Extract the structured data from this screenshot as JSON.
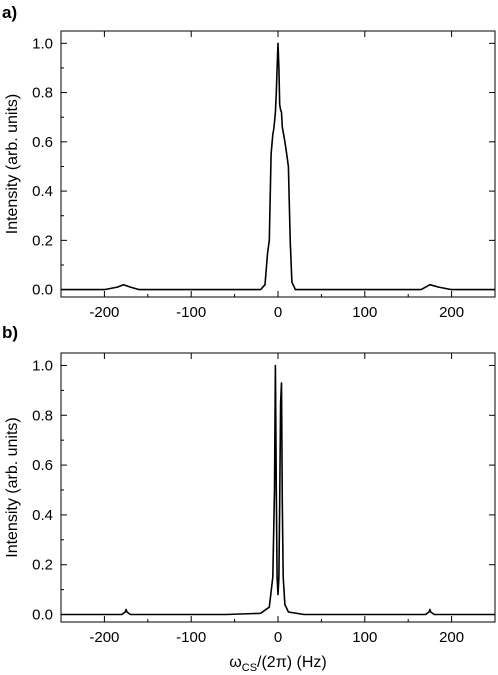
{
  "chart_data": [
    {
      "type": "line",
      "panel_label": "a)",
      "xlabel": "",
      "ylabel": "Intensity (arb. units)",
      "xlim": [
        -250,
        250
      ],
      "ylim": [
        -0.03,
        1.05
      ],
      "xticks": [
        -200,
        -100,
        0,
        100,
        200
      ],
      "xtick_labels": [
        "-200",
        "-100",
        "0",
        "100",
        "200"
      ],
      "yticks": [
        0.0,
        0.2,
        0.4,
        0.6,
        0.8,
        1.0
      ],
      "ytick_labels": [
        "0.0",
        "0.2",
        "0.4",
        "0.6",
        "0.8",
        "1.0"
      ],
      "grid": false,
      "series": [
        {
          "x": [
            -250,
            -200,
            -185,
            -178,
            -170,
            -160,
            -100,
            -30,
            -20,
            -15,
            -12,
            -10,
            -8,
            -6,
            -5,
            -4,
            -3,
            -2,
            -1,
            0,
            1,
            2,
            3,
            4,
            5,
            6,
            8,
            10,
            12,
            14,
            16,
            20,
            30,
            100,
            165,
            175,
            185,
            200,
            250
          ],
          "y": [
            0.0,
            0.0,
            0.01,
            0.02,
            0.01,
            0.0,
            0.0,
            0.0,
            0.0,
            0.02,
            0.15,
            0.2,
            0.55,
            0.63,
            0.65,
            0.68,
            0.72,
            0.8,
            0.9,
            1.0,
            0.9,
            0.75,
            0.73,
            0.72,
            0.66,
            0.64,
            0.6,
            0.55,
            0.5,
            0.2,
            0.03,
            0.0,
            0.0,
            0.0,
            0.0,
            0.02,
            0.01,
            0.0,
            0.0
          ]
        }
      ]
    },
    {
      "type": "line",
      "panel_label": "b)",
      "xlabel": "ωCS/(2π) (Hz)",
      "ylabel": "Intensity (arb. units)",
      "xlim": [
        -250,
        250
      ],
      "ylim": [
        -0.03,
        1.05
      ],
      "xticks": [
        -200,
        -100,
        0,
        100,
        200
      ],
      "xtick_labels": [
        "-200",
        "-100",
        "0",
        "100",
        "200"
      ],
      "yticks": [
        0.0,
        0.2,
        0.4,
        0.6,
        0.8,
        1.0
      ],
      "ytick_labels": [
        "0.0",
        "0.2",
        "0.4",
        "0.6",
        "0.8",
        "1.0"
      ],
      "grid": false,
      "series": [
        {
          "x": [
            -250,
            -180,
            -176,
            -175,
            -174,
            -170,
            -60,
            -20,
            -10,
            -6,
            -4,
            -3,
            -2,
            -1,
            0,
            1,
            2,
            3,
            4,
            5,
            6,
            8,
            12,
            30,
            170,
            174,
            175,
            176,
            180,
            250
          ],
          "y": [
            0.0,
            0.0,
            0.01,
            0.02,
            0.01,
            0.0,
            0.0,
            0.005,
            0.03,
            0.15,
            0.5,
            1.0,
            0.5,
            0.15,
            0.08,
            0.15,
            0.45,
            0.85,
            0.93,
            0.45,
            0.15,
            0.04,
            0.01,
            0.0,
            0.0,
            0.01,
            0.02,
            0.01,
            0.0,
            0.0
          ]
        }
      ]
    }
  ],
  "x_axis_title": {
    "prefix": "ω",
    "subscript": "CS",
    "suffix": "/(2π) (Hz)"
  },
  "colors": {
    "line": "#000000",
    "axes": "#000000",
    "background": "#ffffff"
  }
}
